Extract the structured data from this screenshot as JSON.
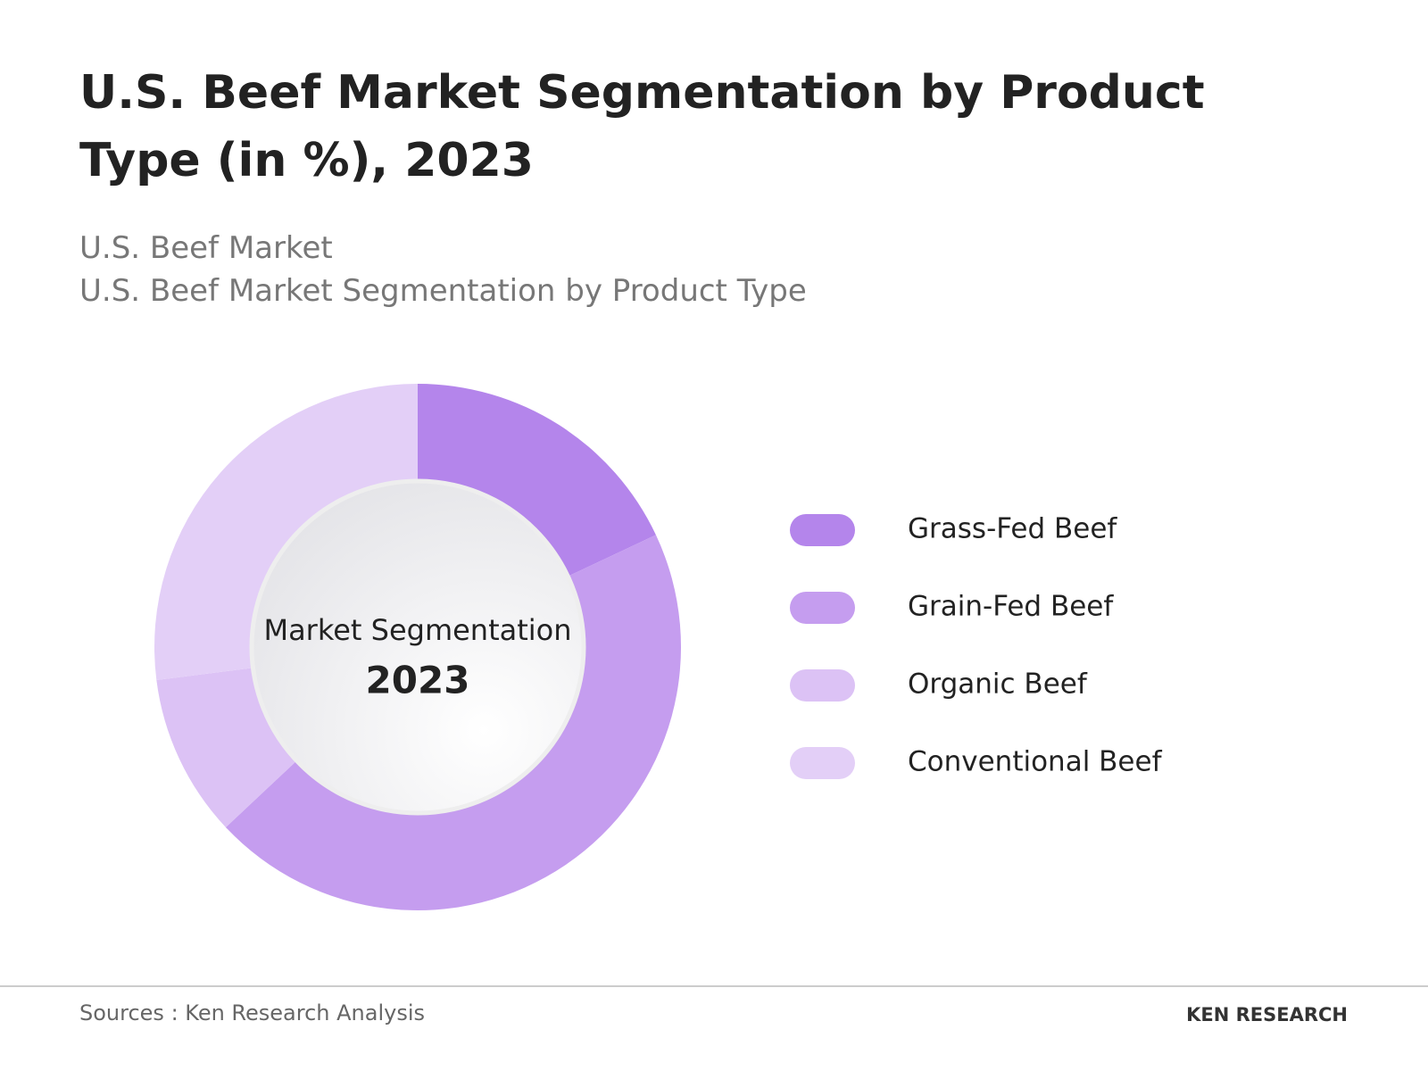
{
  "chart_data": {
    "type": "donut",
    "title": "U.S. Beef Market Segmentation by Product Type (in %), 2023",
    "subtitle": "U.S. Beef Market",
    "subtitle_2": "U.S. Beef Market Segmentation by Product Type",
    "center_label": "Market Segmentation",
    "center_year": "2023",
    "categories": [
      "Grass-Fed Beef",
      "Grain-Fed Beef",
      "Organic Beef",
      "Conventional Beef"
    ],
    "values": [
      18,
      45,
      10,
      27
    ],
    "colors": [
      "#b485eb",
      "#c59def",
      "#dcc2f5",
      "#e3cff7"
    ],
    "legend": "right",
    "source": "Sources : Ken Research Analysis",
    "logo": "KEN RESEARCH"
  }
}
